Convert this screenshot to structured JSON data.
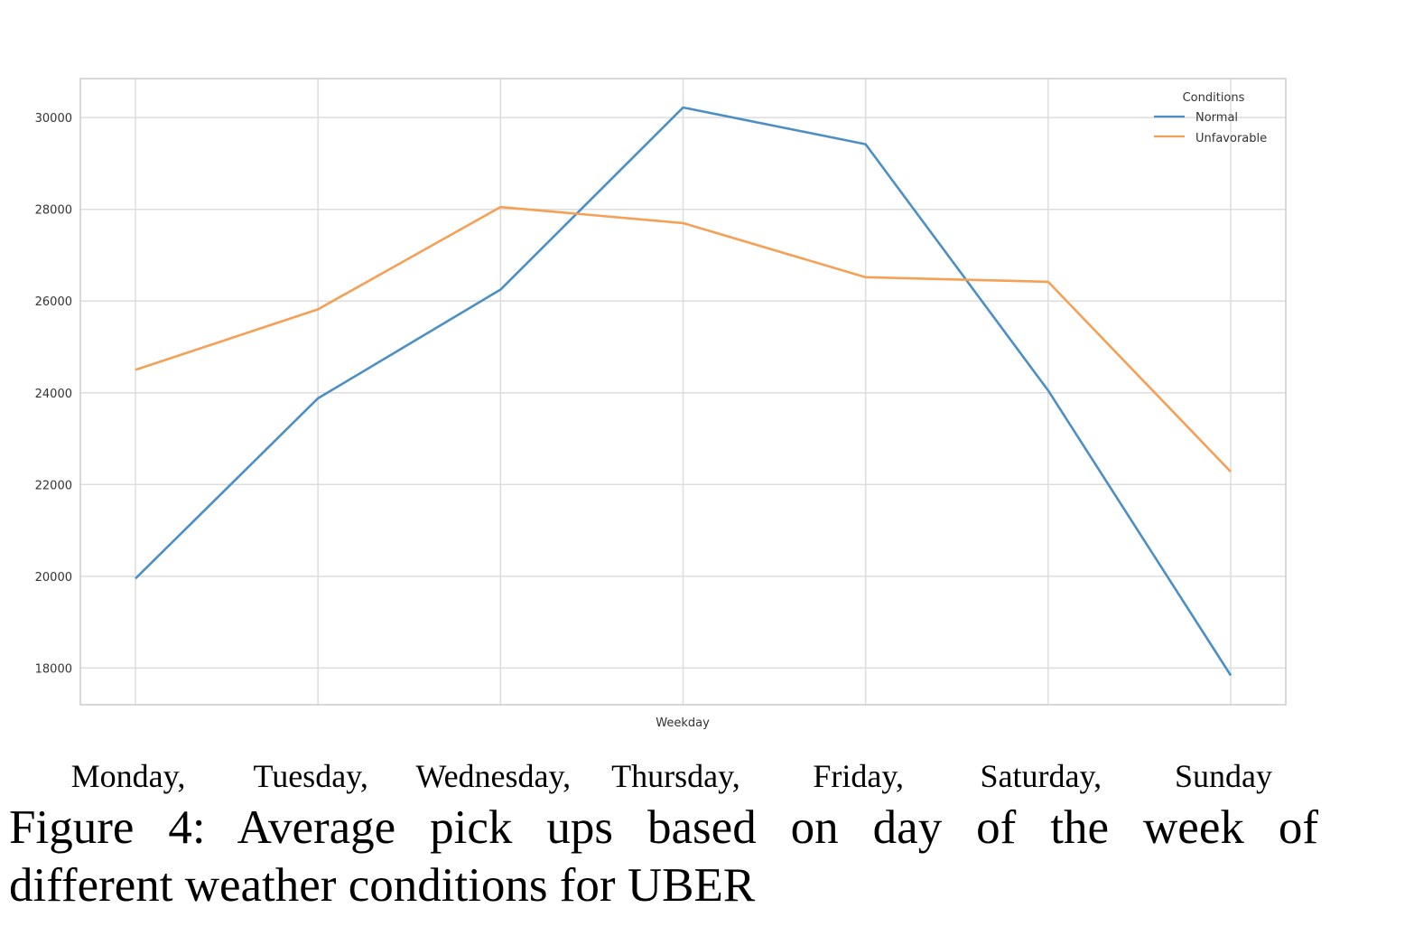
{
  "chart_data": {
    "type": "line",
    "title": "",
    "xlabel": "Weekday",
    "ylabel": "",
    "ylim": [
      17200,
      30850
    ],
    "yticks": [
      18000,
      20000,
      22000,
      24000,
      26000,
      28000,
      30000
    ],
    "grid": true,
    "legend_title": "Conditions",
    "legend_position": "top-right",
    "categories": [
      "Monday,",
      "Tuesday,",
      "Wednesday,",
      "Thursday,",
      "Friday,",
      "Saturday,",
      "Sunday"
    ],
    "series": [
      {
        "name": "Normal",
        "color": "#4c8fc4",
        "values": [
          19950,
          23880,
          26250,
          30220,
          29420,
          24050,
          17840
        ]
      },
      {
        "name": "Unfavorable",
        "color": "#f5a054",
        "values": [
          24500,
          25820,
          28050,
          27700,
          26520,
          26420,
          22280
        ]
      }
    ]
  },
  "caption": {
    "line1": "Figure 4: Average pick ups based on day of the week of",
    "line2": "different weather conditions for UBER"
  }
}
